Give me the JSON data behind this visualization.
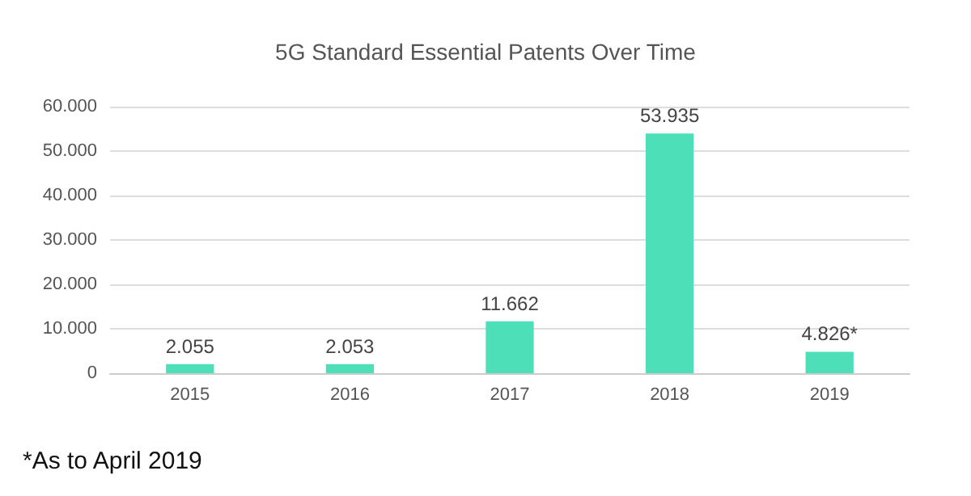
{
  "chart_data": {
    "type": "bar",
    "title": "5G Standard Essential Patents Over Time",
    "categories": [
      "2015",
      "2016",
      "2017",
      "2018",
      "2019"
    ],
    "values": [
      2055,
      2053,
      11662,
      53935,
      4826
    ],
    "value_labels": [
      "2.055",
      "2.053",
      "11.662",
      "53.935",
      "4.826*"
    ],
    "color": "#4ddfb8",
    "ylim": [
      0,
      60000
    ],
    "yticks": [
      {
        "value": 0,
        "label": "0"
      },
      {
        "value": 10000,
        "label": "10.000"
      },
      {
        "value": 20000,
        "label": "20.000"
      },
      {
        "value": 30000,
        "label": "30.000"
      },
      {
        "value": 40000,
        "label": "40.000"
      },
      {
        "value": 50000,
        "label": "50.000"
      },
      {
        "value": 60000,
        "label": "60.000"
      }
    ],
    "grid": "y",
    "annotations": [
      "*As to April 2019"
    ]
  }
}
